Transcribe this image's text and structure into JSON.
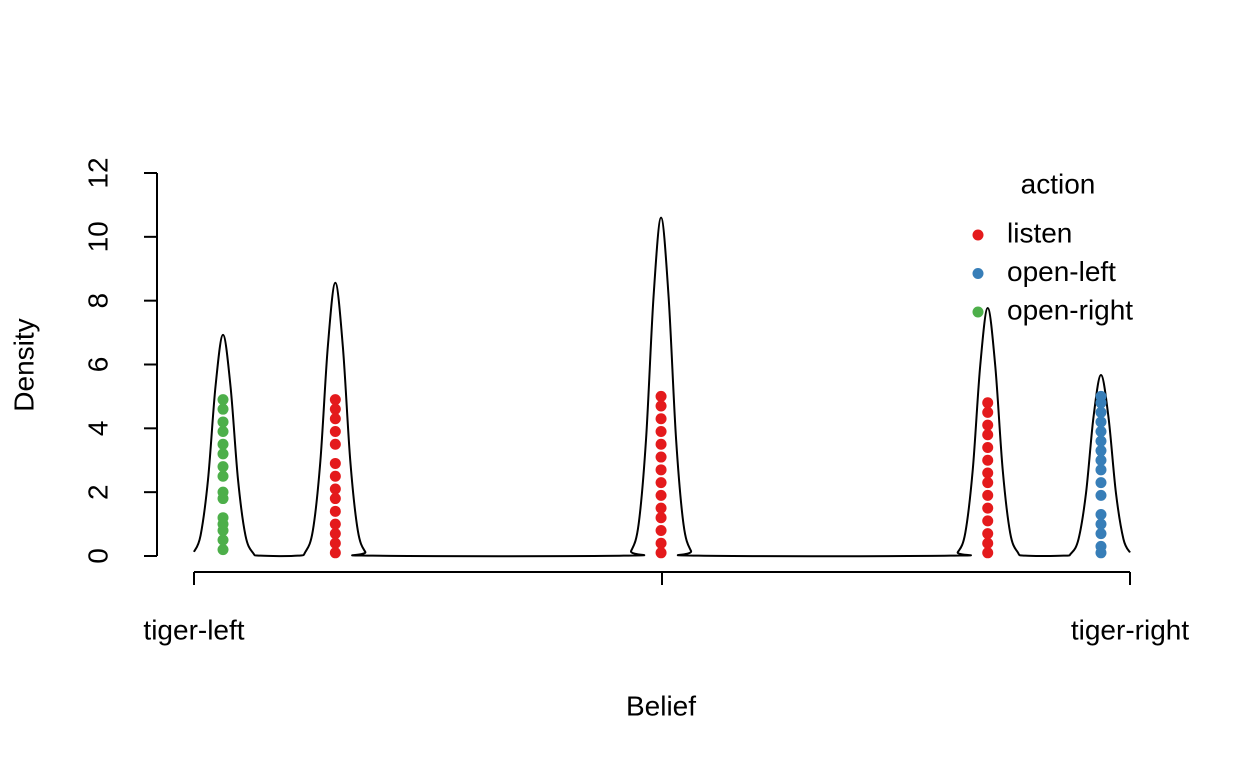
{
  "chart_data": {
    "type": "density",
    "xlabel": "Belief",
    "ylabel": "Density",
    "xlim": [
      0,
      1
    ],
    "xticks": [
      {
        "value": 0,
        "label": "tiger-left"
      },
      {
        "value": 0.5,
        "label": null
      },
      {
        "value": 1,
        "label": "tiger-right"
      }
    ],
    "ylim": [
      0,
      12
    ],
    "yticks": [
      0,
      2,
      4,
      6,
      8,
      10,
      12
    ],
    "legend_title": "action",
    "legend_position": "topright",
    "curve": {
      "color": "#000000",
      "x": [
        0,
        0.007,
        0.015,
        0.023,
        0.031,
        0.039,
        0.047,
        0.055,
        0.063,
        0.071,
        0.111,
        0.119,
        0.127,
        0.135,
        0.143,
        0.151,
        0.159,
        0.167,
        0.175,
        0.183,
        0.191,
        0.459,
        0.467,
        0.475,
        0.483,
        0.491,
        0.499,
        0.507,
        0.515,
        0.523,
        0.531,
        0.539,
        0.808,
        0.816,
        0.824,
        0.832,
        0.84,
        0.848,
        0.856,
        0.864,
        0.872,
        0.88,
        0.888,
        0.929,
        0.937,
        0.945,
        0.953,
        0.961,
        0.969,
        0.977,
        0.985,
        0.993,
        1
      ],
      "y": [
        0.13,
        0.64,
        2.4,
        5.32,
        6.93,
        5.32,
        2.4,
        0.64,
        0.1,
        0.01,
        0.01,
        0.13,
        0.8,
        2.97,
        6.57,
        8.56,
        6.57,
        2.97,
        0.8,
        0.13,
        0.01,
        0.01,
        0.16,
        0.99,
        3.68,
        8.14,
        10.6,
        8.14,
        3.68,
        0.99,
        0.16,
        0.01,
        0.01,
        0.12,
        0.72,
        2.7,
        5.97,
        7.77,
        5.97,
        2.7,
        0.72,
        0.12,
        0.01,
        0.01,
        0.08,
        0.53,
        1.97,
        4.35,
        5.67,
        4.35,
        1.97,
        0.53,
        0.11
      ]
    },
    "series": [
      {
        "name": "listen",
        "color": "#E41A1C",
        "x": [
          0.151,
          0.151,
          0.151,
          0.151,
          0.151,
          0.151,
          0.151,
          0.151,
          0.151,
          0.151,
          0.151,
          0.151,
          0.151,
          0.151,
          0.499,
          0.499,
          0.499,
          0.499,
          0.499,
          0.499,
          0.499,
          0.499,
          0.499,
          0.499,
          0.499,
          0.499,
          0.499,
          0.499,
          0.848,
          0.848,
          0.848,
          0.848,
          0.848,
          0.848,
          0.848,
          0.848,
          0.848,
          0.848,
          0.848,
          0.848,
          0.848,
          0.848
        ],
        "y": [
          0.1,
          0.4,
          0.7,
          1.0,
          1.4,
          1.8,
          2.1,
          2.5,
          2.9,
          3.5,
          3.9,
          4.3,
          4.6,
          4.9,
          0.1,
          0.4,
          0.8,
          1.2,
          1.5,
          1.9,
          2.3,
          2.7,
          3.1,
          3.5,
          3.9,
          4.3,
          4.7,
          5.0,
          0.1,
          0.4,
          0.7,
          1.1,
          1.5,
          1.9,
          2.3,
          2.6,
          3.0,
          3.4,
          3.8,
          4.1,
          4.5,
          4.8
        ]
      },
      {
        "name": "open-left",
        "color": "#377EB8",
        "x": [
          0.969,
          0.969,
          0.969,
          0.969,
          0.969,
          0.969,
          0.969,
          0.969,
          0.969,
          0.969,
          0.969,
          0.969,
          0.969,
          0.969,
          0.969,
          0.969
        ],
        "y": [
          0.1,
          0.3,
          0.7,
          1.0,
          1.3,
          1.9,
          2.3,
          2.7,
          3.0,
          3.3,
          3.6,
          3.9,
          4.2,
          4.5,
          4.8,
          5.0
        ]
      },
      {
        "name": "open-right",
        "color": "#4DAF4A",
        "x": [
          0.031,
          0.031,
          0.031,
          0.031,
          0.031,
          0.031,
          0.031,
          0.031,
          0.031,
          0.031,
          0.031,
          0.031,
          0.031,
          0.031,
          0.031
        ],
        "y": [
          0.2,
          0.5,
          0.8,
          1.0,
          1.2,
          1.8,
          2.0,
          2.5,
          2.8,
          3.2,
          3.5,
          3.9,
          4.2,
          4.6,
          4.9
        ]
      }
    ]
  }
}
